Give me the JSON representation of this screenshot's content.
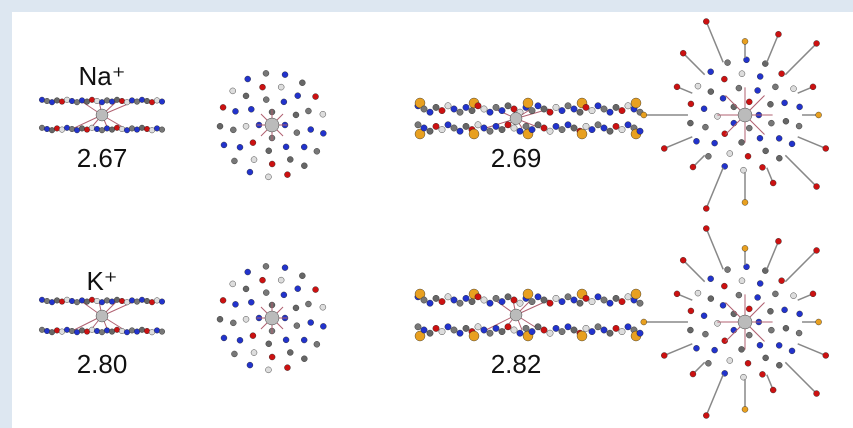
{
  "rows": [
    {
      "ion": "Na⁺",
      "distance_small": "2.67",
      "distance_large": "2.69"
    },
    {
      "ion": "K⁺",
      "distance_small": "2.80",
      "distance_large": "2.82"
    }
  ]
}
